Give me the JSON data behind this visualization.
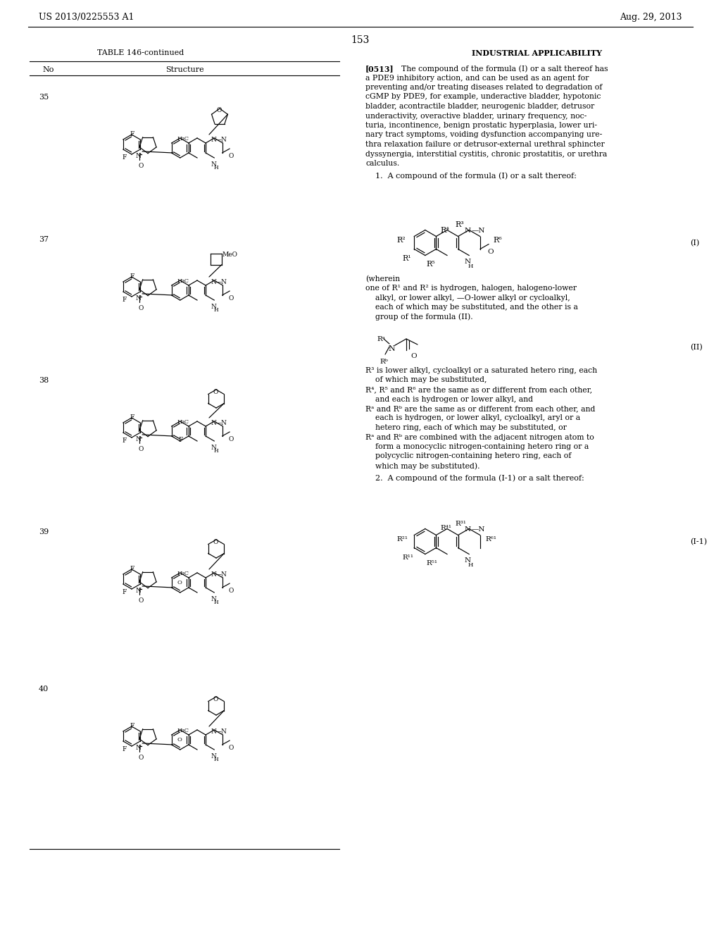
{
  "bg_color": "#ffffff",
  "header_left": "US 2013/0225553 A1",
  "header_right": "Aug. 29, 2013",
  "page_number": "153",
  "table_title": "TABLE 146-continued",
  "right_section_title": "INDUSTRIAL APPLICABILITY",
  "compound_numbers": [
    "35",
    "37",
    "38",
    "39",
    "40"
  ],
  "para_lines": [
    "[0513]    The compound of the formula (I) or a salt thereof has",
    "a PDE9 inhibitory action, and can be used as an agent for",
    "preventing and/or treating diseases related to degradation of",
    "cGMP by PDE9, for example, underactive bladder, hypotonic",
    "bladder, acontractile bladder, neurogenic bladder, detrusor",
    "underactivity, overactive bladder, urinary frequency, noc-",
    "turia, incontinence, benign prostatic hyperplasia, lower uri-",
    "nary tract symptoms, voiding dysfunction accompanying ure-",
    "thra relaxation failure or detrusor-external urethral sphincter",
    "dyssynergia, interstitial cystitis, chronic prostatitis, or urethra",
    "calculus."
  ],
  "claim1": "    1.  A compound of the formula (I) or a salt thereof:",
  "wherein_lines": [
    "(wherein",
    "one of R¹ and R² is hydrogen, halogen, halogeno-lower",
    "    alkyl, or lower alkyl, —O-lower alkyl or cycloalkyl,",
    "    each of which may be substituted, and the other is a",
    "    group of the formula (II)."
  ],
  "r_text_lines": [
    "R³ is lower alkyl, cycloalkyl or a saturated hetero ring, each",
    "    of which may be substituted,",
    "R⁴, R⁵ and R⁶ are the same as or different from each other,",
    "    and each is hydrogen or lower alkyl, and",
    "Rᵃ and Rᵇ are the same as or different from each other, and",
    "    each is hydrogen, or lower alkyl, cycloalkyl, aryl or a",
    "    hetero ring, each of which may be substituted, or",
    "Rᵃ and Rᵇ are combined with the adjacent nitrogen atom to",
    "    form a monocyclic nitrogen-containing hetero ring or a",
    "    polycyclic nitrogen-containing hetero ring, each of",
    "    which may be substituted)."
  ],
  "claim2": "    2.  A compound of the formula (I-1) or a salt thereof:"
}
